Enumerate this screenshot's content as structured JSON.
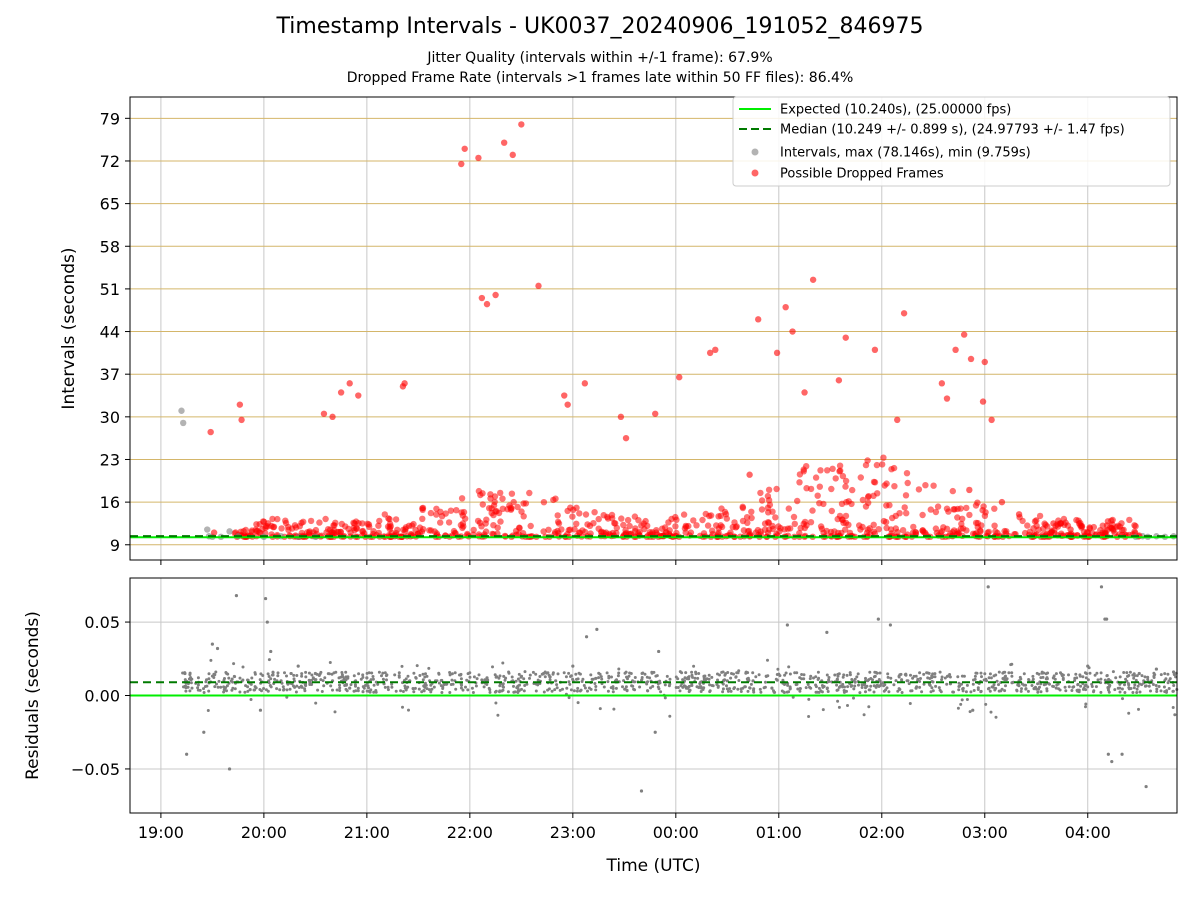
{
  "chart_data": [
    {
      "type": "scatter",
      "title": "Timestamp Intervals - UK0037_20240906_191052_846975",
      "subtitle_1": "Jitter Quality (intervals within +/-1 frame): 67.9%",
      "subtitle_2": "Dropped Frame Rate (intervals >1 frames late within 50 FF files): 86.4%",
      "ylabel": "Intervals (seconds)",
      "ylim": [
        6.5,
        82.5
      ],
      "yticks": [
        9,
        16,
        23,
        30,
        37,
        44,
        51,
        58,
        65,
        72,
        79
      ],
      "grid": "vertical and horizontal",
      "legend": "top-right",
      "legend_entries": [
        "Expected (10.240s), (25.00000 fps)",
        "Median (10.249 +/- 0.899 s), (24.97793 +/- 1.47 fps)",
        "Intervals, max (78.146s), min (9.759s)",
        "Possible Dropped Frames"
      ],
      "expected": 10.24,
      "median": 10.249,
      "series": [
        {
          "name": "Intervals, max (78.146s), min (9.759s)",
          "color": "#808080",
          "x": [
            "19:12",
            "19:13",
            "19:27",
            "19:28",
            "19:30",
            "19:35",
            "19:40",
            "19:45",
            "20:00",
            "20:10",
            "20:20",
            "20:30",
            "04:28",
            "04:32",
            "04:35",
            "04:40",
            "04:45",
            "04:50"
          ],
          "y": [
            31.0,
            29.0,
            11.5,
            10.4,
            10.3,
            10.3,
            11.2,
            10.4,
            10.3,
            10.4,
            10.3,
            10.3,
            10.3,
            10.4,
            10.3,
            10.4,
            10.3,
            10.4
          ]
        },
        {
          "name": "Possible Dropped Frames",
          "color": "#ff0000",
          "x": [
            "19:29",
            "19:31",
            "19:46",
            "19:47",
            "20:35",
            "20:40",
            "20:45",
            "20:50",
            "20:55",
            "21:21",
            "21:22",
            "21:55",
            "21:57",
            "22:05",
            "22:07",
            "22:10",
            "22:15",
            "22:20",
            "22:25",
            "22:30",
            "22:40",
            "22:55",
            "22:57",
            "23:07",
            "23:28",
            "23:31",
            "23:48",
            "00:02",
            "00:20",
            "00:23",
            "00:43",
            "00:48",
            "00:59",
            "01:04",
            "01:08",
            "01:15",
            "01:20",
            "01:35",
            "01:39",
            "01:56",
            "02:09",
            "02:13",
            "02:35",
            "02:38",
            "02:43",
            "02:48",
            "02:51",
            "02:52",
            "02:59",
            "03:00",
            "03:04",
            "03:10",
            "03:20",
            "03:30",
            "03:40",
            "03:50",
            "04:00",
            "04:10",
            "04:20",
            "04:30"
          ],
          "y": [
            27.5,
            11.0,
            32.0,
            29.5,
            30.5,
            30.0,
            34.0,
            35.5,
            33.5,
            35.0,
            35.5,
            71.5,
            74.0,
            72.5,
            49.5,
            48.5,
            50.0,
            75.0,
            73.0,
            78.0,
            51.5,
            33.5,
            32.0,
            35.5,
            30.0,
            26.5,
            30.5,
            36.5,
            40.5,
            41.0,
            20.5,
            46.0,
            40.5,
            48.0,
            44.0,
            34.0,
            52.5,
            36.0,
            43.0,
            41.0,
            29.5,
            47.0,
            35.5,
            33.0,
            41.0,
            43.5,
            18.0,
            39.5,
            32.5,
            39.0,
            29.5,
            16.0,
            14.0,
            13.0,
            12.5,
            11.5,
            11.0,
            10.8,
            10.6,
            10.5
          ]
        }
      ]
    },
    {
      "type": "scatter",
      "xlabel": "Time (UTC)",
      "ylabel": "Residuals (seconds)",
      "ylim": [
        -0.08,
        0.08
      ],
      "ytick_labels": [
        "0.05",
        "0.00",
        "−0.05"
      ],
      "ytick_values": [
        0.05,
        0.0,
        -0.05
      ],
      "xtick_labels": [
        "19:00",
        "20:00",
        "21:00",
        "22:00",
        "23:00",
        "00:00",
        "01:00",
        "02:00",
        "03:00",
        "04:00"
      ],
      "xlim": [
        "18:42",
        "04:52"
      ],
      "expected": 0.0,
      "median": 0.009,
      "grid": "vertical and horizontal",
      "series": [
        {
          "name": "Residuals",
          "color": "#808080",
          "x": [
            "19:14",
            "19:15",
            "19:25",
            "19:30",
            "19:33",
            "19:37",
            "19:40",
            "19:44",
            "19:52",
            "19:58",
            "20:01",
            "20:02",
            "20:04",
            "20:10",
            "20:20",
            "20:30",
            "20:40",
            "20:50",
            "21:00",
            "21:10",
            "21:25",
            "21:40",
            "21:55",
            "22:10",
            "22:25",
            "22:40",
            "22:50",
            "23:00",
            "23:08",
            "23:14",
            "23:40",
            "23:48",
            "23:50",
            "00:05",
            "00:15",
            "00:30",
            "00:45",
            "00:56",
            "01:05",
            "01:25",
            "01:28",
            "01:50",
            "01:58",
            "02:05",
            "02:20",
            "02:40",
            "02:53",
            "03:02",
            "03:20",
            "03:40",
            "04:00",
            "04:08",
            "04:10",
            "04:11",
            "04:12",
            "04:14",
            "04:20",
            "04:30",
            "04:34",
            "04:40",
            "04:50"
          ],
          "y": [
            0.015,
            -0.04,
            -0.025,
            0.035,
            0.032,
            0.004,
            -0.05,
            0.068,
            0.004,
            -0.01,
            0.066,
            0.05,
            0.03,
            0.01,
            0.02,
            0.015,
            0.01,
            0.005,
            0.012,
            0.008,
            0.01,
            0.01,
            0.008,
            0.012,
            0.01,
            0.009,
            0.01,
            0.02,
            0.04,
            0.045,
            -0.065,
            -0.025,
            0.03,
            0.01,
            0.005,
            0.01,
            0.01,
            0.005,
            0.048,
            0.01,
            0.043,
            0.008,
            0.052,
            0.048,
            0.005,
            0.008,
            -0.01,
            0.074,
            0.01,
            0.012,
            0.02,
            0.074,
            0.052,
            0.052,
            -0.04,
            -0.045,
            -0.04,
            0.015,
            -0.062,
            0.018,
            0.016
          ]
        }
      ]
    }
  ],
  "titles": {
    "main": "Timestamp Intervals - UK0037_20240906_191052_846975",
    "sub1": "Jitter Quality (intervals within +/-1 frame): 67.9%",
    "sub2": "Dropped Frame Rate (intervals >1 frames late within 50 FF files): 86.4%"
  },
  "colors": {
    "expected_line": "#00ee00",
    "median_line": "#007a00",
    "intervals": "#808080",
    "dropped": "#ff0000",
    "hgrid_top": "#d4b66a",
    "grid": "#c8c8c8"
  }
}
